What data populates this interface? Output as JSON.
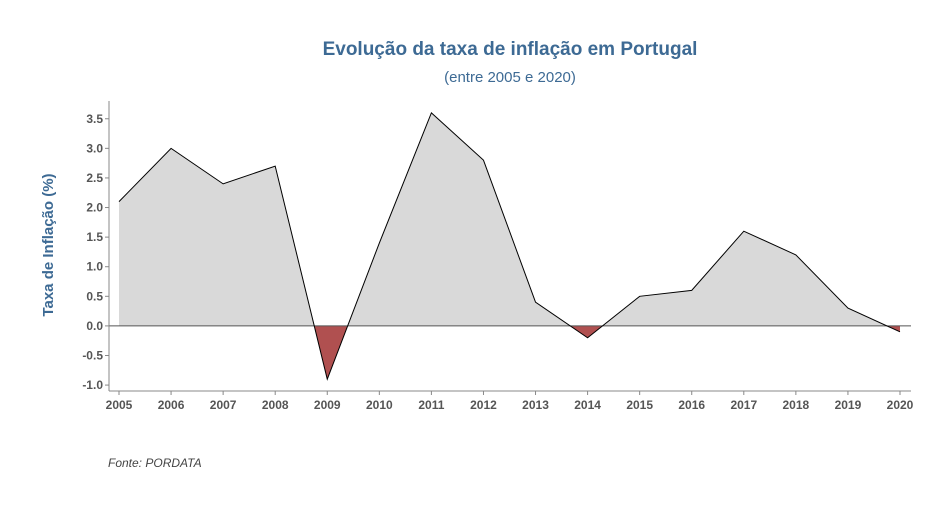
{
  "chart_data": {
    "type": "area",
    "title": "Evolução da taxa de inflação em Portugal",
    "subtitle": "(entre 2005 e 2020)",
    "xlabel": "",
    "ylabel": "Taxa de Inflação (%)",
    "source": "Fonte: PORDATA",
    "x": [
      "2005",
      "2006",
      "2007",
      "2008",
      "2009",
      "2010",
      "2011",
      "2012",
      "2013",
      "2014",
      "2015",
      "2016",
      "2017",
      "2018",
      "2019",
      "2020"
    ],
    "values": [
      2.1,
      3.0,
      2.4,
      2.7,
      -0.9,
      1.4,
      3.6,
      2.8,
      0.4,
      -0.2,
      0.5,
      0.6,
      1.6,
      1.2,
      0.3,
      -0.1
    ],
    "y_ticks": [
      "-1.0",
      "-0.5",
      "0.0",
      "0.5",
      "1.0",
      "1.5",
      "2.0",
      "2.5",
      "3.0",
      "3.5"
    ],
    "ylim": [
      -1.1,
      3.8
    ],
    "colors": {
      "positive_fill": "#d9d9d9",
      "negative_fill": "#b05050",
      "line": "#000000",
      "title": "#3d6a94"
    },
    "grid": false,
    "legend": "none"
  }
}
